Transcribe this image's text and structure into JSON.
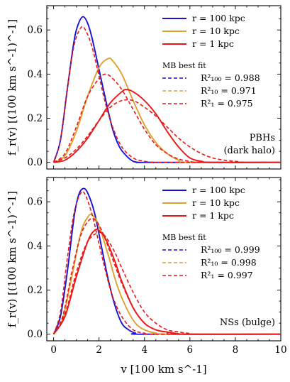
{
  "chart_data": [
    {
      "type": "line",
      "panel": "top",
      "xlim": [
        -0.3,
        10
      ],
      "ylim": [
        -0.03,
        0.71
      ],
      "xticks": [
        "0",
        "2",
        "4",
        "6",
        "8",
        "10"
      ],
      "yticks": [
        "0.0",
        "0.2",
        "0.4",
        "0.6"
      ],
      "ylabel": "f_r(v) [(100 km s^-1)^-1]",
      "annotation": [
        "PBHs",
        "(dark halo)"
      ],
      "legend_title": "MB best fit",
      "legend_entries": [
        "r = 100 kpc",
        "r = 10 kpc",
        "r = 1 kpc",
        "R²₁₀₀ = 0.988",
        "R²₁₀ = 0.971",
        "R²₁ = 0.975"
      ],
      "colors": {
        "r100": "#1a14d2",
        "r10": "#e0a030",
        "r1": "#e81818"
      },
      "series": [
        {
          "name": "r = 100 kpc",
          "style": "solid",
          "x": [
            0,
            0.3,
            0.6,
            0.9,
            1.1,
            1.3,
            1.5,
            1.7,
            2.0,
            2.3,
            2.6,
            2.9,
            3.2,
            3.5,
            3.8,
            4.2
          ],
          "y": [
            0,
            0.1,
            0.33,
            0.55,
            0.63,
            0.66,
            0.63,
            0.56,
            0.42,
            0.28,
            0.15,
            0.07,
            0.03,
            0.005,
            0.0,
            0.0
          ]
        },
        {
          "name": "r = 10 kpc",
          "style": "solid",
          "x": [
            0,
            0.5,
            1.0,
            1.5,
            2.0,
            2.4,
            2.6,
            3.0,
            3.5,
            4.0,
            4.5,
            5.0,
            5.5,
            6.0
          ],
          "y": [
            0,
            0.03,
            0.14,
            0.3,
            0.43,
            0.47,
            0.46,
            0.4,
            0.28,
            0.17,
            0.09,
            0.04,
            0.01,
            0.0
          ]
        },
        {
          "name": "r = 1 kpc",
          "style": "solid",
          "x": [
            0,
            0.5,
            1.0,
            1.5,
            2.0,
            2.5,
            3.0,
            3.2,
            3.5,
            4.0,
            4.5,
            5.0,
            5.5,
            6.0,
            6.5,
            7.0
          ],
          "y": [
            0,
            0.01,
            0.05,
            0.11,
            0.19,
            0.27,
            0.32,
            0.33,
            0.32,
            0.28,
            0.22,
            0.14,
            0.07,
            0.02,
            0.005,
            0.0
          ]
        },
        {
          "name": "R²₁₀₀ = 0.988",
          "style": "dashed",
          "x": [
            0,
            0.3,
            0.6,
            0.9,
            1.2,
            1.4,
            1.7,
            2.0,
            2.3,
            2.6,
            3.0,
            3.5,
            4.0,
            4.5,
            5.0
          ],
          "y": [
            0,
            0.1,
            0.33,
            0.53,
            0.61,
            0.6,
            0.52,
            0.39,
            0.26,
            0.16,
            0.07,
            0.02,
            0.005,
            0.0,
            0.0
          ]
        },
        {
          "name": "R²₁₀ = 0.971",
          "style": "dashed",
          "x": [
            0,
            0.5,
            1.0,
            1.5,
            2.0,
            2.3,
            2.6,
            3.0,
            3.5,
            4.0,
            4.5,
            5.0,
            5.5,
            6.0,
            6.5
          ],
          "y": [
            0,
            0.04,
            0.16,
            0.3,
            0.38,
            0.4,
            0.38,
            0.33,
            0.24,
            0.15,
            0.08,
            0.04,
            0.015,
            0.005,
            0.0
          ]
        },
        {
          "name": "R²₁ = 0.975",
          "style": "dashed",
          "x": [
            0,
            0.5,
            1.0,
            1.5,
            2.0,
            2.5,
            3.0,
            3.5,
            4.0,
            4.5,
            5.0,
            5.5,
            6.0,
            6.5,
            7.0,
            7.5,
            8.0,
            8.5
          ],
          "y": [
            0,
            0.02,
            0.06,
            0.12,
            0.19,
            0.25,
            0.28,
            0.28,
            0.25,
            0.21,
            0.16,
            0.11,
            0.07,
            0.04,
            0.02,
            0.01,
            0.005,
            0.0
          ]
        }
      ]
    },
    {
      "type": "line",
      "panel": "bottom",
      "xlim": [
        -0.3,
        10
      ],
      "ylim": [
        -0.03,
        0.71
      ],
      "xticks": [
        "0",
        "2",
        "4",
        "6",
        "8",
        "10"
      ],
      "yticks": [
        "0.0",
        "0.2",
        "0.4",
        "0.6"
      ],
      "xlabel": "v [100 km s^-1]",
      "ylabel": "f_r(v) [(100 km s^-1)^-1]",
      "annotation": [
        "NSs (bulge)"
      ],
      "legend_title": "MB best fit",
      "legend_entries": [
        "r = 100 kpc",
        "r = 10 kpc",
        "r = 1 kpc",
        "R²₁₀₀ = 0.999",
        "R²₁₀ = 0.998",
        "R²₁ = 0.997"
      ],
      "colors": {
        "r100": "#1a14d2",
        "r10": "#e0a030",
        "r1": "#e81818"
      },
      "series": [
        {
          "name": "r = 100 kpc",
          "style": "solid",
          "x": [
            0,
            0.3,
            0.6,
            0.9,
            1.1,
            1.3,
            1.5,
            1.8,
            2.1,
            2.4,
            2.7,
            3.0,
            3.3,
            3.6,
            4.0
          ],
          "y": [
            0,
            0.08,
            0.28,
            0.53,
            0.63,
            0.66,
            0.64,
            0.55,
            0.4,
            0.25,
            0.13,
            0.05,
            0.02,
            0.005,
            0.0
          ]
        },
        {
          "name": "r = 10 kpc",
          "style": "solid",
          "x": [
            0,
            0.4,
            0.8,
            1.2,
            1.5,
            1.7,
            2.0,
            2.4,
            2.8,
            3.2,
            3.6,
            4.0,
            4.5,
            5.0
          ],
          "y": [
            0,
            0.07,
            0.26,
            0.46,
            0.53,
            0.54,
            0.49,
            0.36,
            0.22,
            0.12,
            0.05,
            0.02,
            0.005,
            0.0
          ]
        },
        {
          "name": "r = 1 kpc",
          "style": "solid",
          "x": [
            0,
            0.5,
            1.0,
            1.5,
            1.8,
            2.0,
            2.3,
            2.7,
            3.0,
            3.5,
            4.0,
            4.5,
            5.0,
            5.5,
            6.0
          ],
          "y": [
            0,
            0.08,
            0.26,
            0.42,
            0.47,
            0.47,
            0.43,
            0.33,
            0.24,
            0.12,
            0.05,
            0.02,
            0.01,
            0.002,
            0.0
          ]
        },
        {
          "name": "R²₁₀₀ = 0.999",
          "style": "dashed",
          "x": [
            0,
            0.3,
            0.6,
            0.9,
            1.2,
            1.4,
            1.7,
            2.0,
            2.3,
            2.6,
            3.0,
            3.5,
            4.0,
            4.5
          ],
          "y": [
            0,
            0.1,
            0.34,
            0.55,
            0.64,
            0.63,
            0.54,
            0.41,
            0.28,
            0.17,
            0.08,
            0.02,
            0.005,
            0.0
          ]
        },
        {
          "name": "R²₁₀ = 0.998",
          "style": "dashed",
          "x": [
            0,
            0.4,
            0.8,
            1.2,
            1.6,
            1.9,
            2.2,
            2.6,
            3.0,
            3.5,
            4.0,
            4.5,
            5.0,
            5.5
          ],
          "y": [
            0,
            0.08,
            0.28,
            0.45,
            0.52,
            0.51,
            0.45,
            0.34,
            0.23,
            0.12,
            0.05,
            0.02,
            0.008,
            0.0
          ]
        },
        {
          "name": "R²₁ = 0.997",
          "style": "dashed",
          "x": [
            0,
            0.5,
            1.0,
            1.5,
            2.0,
            2.3,
            2.7,
            3.0,
            3.5,
            4.0,
            4.5,
            5.0,
            5.5,
            6.0,
            6.5
          ],
          "y": [
            0,
            0.09,
            0.28,
            0.42,
            0.46,
            0.44,
            0.37,
            0.3,
            0.19,
            0.1,
            0.05,
            0.02,
            0.01,
            0.003,
            0.0
          ]
        }
      ]
    }
  ]
}
